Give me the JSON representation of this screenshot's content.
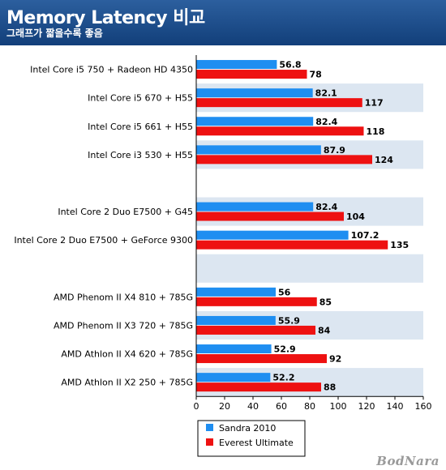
{
  "header": {
    "title": "Memory  Latency  비교",
    "subtitle": "그래프가  짧을수록  좋음"
  },
  "watermark": "BodNara",
  "colors": {
    "sandra": "#1f8ef1",
    "everest": "#ee1111",
    "band": "#dce6f1",
    "header": "#1b4a86"
  },
  "chart_data": {
    "type": "bar",
    "orientation": "horizontal",
    "xlim": [
      0,
      160
    ],
    "xticks": [
      "0",
      "20",
      "40",
      "60",
      "80",
      "100",
      "120",
      "140",
      "160"
    ],
    "legend_position": "bottom",
    "grid": false,
    "categories": [
      "Intel Core i5 750 + Radeon HD 4350",
      "Intel Core i5 670 + H55",
      "Intel Core i5 661 + H55",
      "Intel Core i3 530 + H55",
      "",
      "Intel Core 2 Duo E7500 + G45",
      "Intel Core 2 Duo E7500 + GeForce 9300",
      "",
      "AMD Phenom II X4 810 + 785G",
      "AMD Phenom II X3 720 + 785G",
      "AMD Athlon II X4 620 + 785G",
      "AMD Athlon II X2 250 + 785G"
    ],
    "series": [
      {
        "name": "Sandra 2010",
        "values": [
          56.8,
          82.1,
          82.4,
          87.9,
          null,
          82.4,
          107.2,
          null,
          56,
          55.9,
          52.9,
          52.2
        ],
        "labels": [
          "56.8",
          "82.1",
          "82.4",
          "87.9",
          "",
          "82.4",
          "107.2",
          "",
          "56",
          "55.9",
          "52.9",
          "52.2"
        ]
      },
      {
        "name": "Everest Ultimate",
        "values": [
          78,
          117,
          118,
          124,
          null,
          104,
          135,
          null,
          85,
          84,
          92,
          88
        ],
        "labels": [
          "78",
          "117",
          "118",
          "124",
          "",
          "104",
          "135",
          "",
          "85",
          "84",
          "92",
          "88"
        ]
      }
    ]
  }
}
